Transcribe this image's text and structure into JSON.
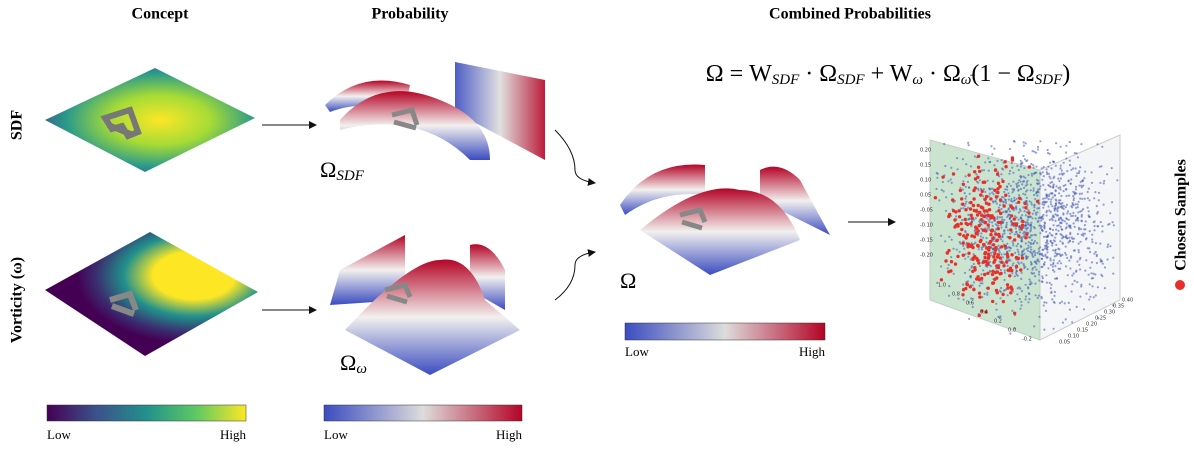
{
  "headers": {
    "concept": "Concept",
    "probability": "Probability",
    "combined": "Combined Probabilities"
  },
  "rows": {
    "sdf": "SDF",
    "vorticity": "Vorticity (ω)"
  },
  "formula": [
    {
      "text": "Ω = W",
      "sub": "SDF"
    },
    {
      "text": " · Ω",
      "sub": "SDF"
    },
    {
      "text": " + W",
      "sub": "ω"
    },
    {
      "text": " · Ω",
      "sub": "ω̄"
    },
    {
      "text": "(1 − Ω",
      "sub": "SDF"
    },
    {
      "text": ")"
    }
  ],
  "omega_labels": {
    "sdf": {
      "text": "Ω",
      "sub": "SDF"
    },
    "vorticity": {
      "text": "Ω",
      "sub": "ω"
    },
    "combined": {
      "text": "Ω"
    }
  },
  "colorbars": [
    {
      "low": "Low",
      "high": "High"
    },
    {
      "low": "Low",
      "high": "High"
    },
    {
      "low": "Low",
      "high": "High"
    }
  ],
  "scatter": {
    "y_ticks": [
      "0.20",
      "0.15",
      "0.10",
      "0.05",
      "-0.05",
      "-0.10",
      "-0.15",
      "-0.20"
    ],
    "x_ticks": [
      "0.40",
      "0.35",
      "0.30",
      "0.25",
      "0.20",
      "0.15",
      "0.10",
      "0.05"
    ],
    "z_ticks": [
      "1.0",
      "0.8",
      "0.6",
      "0.4",
      "0.2",
      "0.0",
      "-0.2"
    ]
  },
  "legend": {
    "label": "Chosen Samples"
  }
}
